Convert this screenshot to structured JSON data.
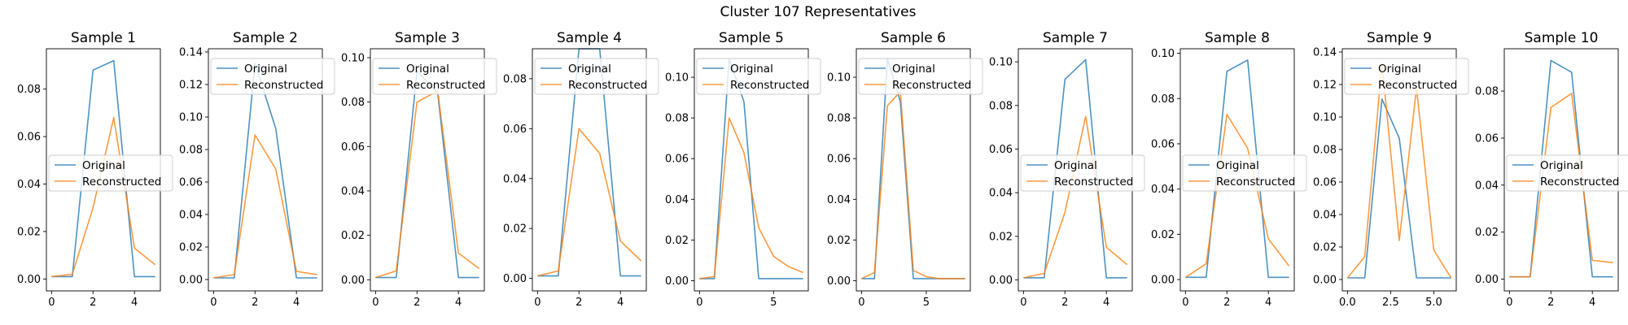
{
  "figure": {
    "title": "Cluster 107 Representatives"
  },
  "colors": {
    "original": "#1f77b4",
    "reconstructed": "#ff7f0e"
  },
  "legend_labels": [
    "Original",
    "Reconstructed"
  ],
  "chart_data": [
    {
      "type": "line",
      "title": "Sample 1",
      "xlim": [
        -0.25,
        5.25
      ],
      "ylim": [
        -0.005,
        0.097
      ],
      "xticks": [
        0,
        2,
        4
      ],
      "xtick_labels": [
        "0",
        "2",
        "4"
      ],
      "yticks": [
        0,
        0.02,
        0.04,
        0.06,
        0.08
      ],
      "ytick_labels": [
        "0.00",
        "0.02",
        "0.04",
        "0.06",
        "0.08"
      ],
      "legend_position": "center-left",
      "series": [
        {
          "name": "Original",
          "x": [
            0,
            1,
            2,
            3,
            4,
            5
          ],
          "y": [
            0.001,
            0.001,
            0.088,
            0.092,
            0.001,
            0.001
          ]
        },
        {
          "name": "Reconstructed",
          "x": [
            0,
            1,
            2,
            3,
            4,
            5
          ],
          "y": [
            0.001,
            0.002,
            0.03,
            0.068,
            0.013,
            0.006
          ]
        }
      ]
    },
    {
      "type": "line",
      "title": "Sample 2",
      "xlim": [
        -0.25,
        5.25
      ],
      "ylim": [
        -0.007,
        0.142
      ],
      "xticks": [
        0,
        2,
        4
      ],
      "xtick_labels": [
        "0",
        "2",
        "4"
      ],
      "yticks": [
        0,
        0.02,
        0.04,
        0.06,
        0.08,
        0.1,
        0.12,
        0.14
      ],
      "ytick_labels": [
        "0.00",
        "0.02",
        "0.04",
        "0.06",
        "0.08",
        "0.10",
        "0.12",
        "0.14"
      ],
      "legend_position": "upper-left",
      "series": [
        {
          "name": "Original",
          "x": [
            0,
            1,
            2,
            3,
            4,
            5
          ],
          "y": [
            0.001,
            0.001,
            0.133,
            0.093,
            0.001,
            0.001
          ]
        },
        {
          "name": "Reconstructed",
          "x": [
            0,
            1,
            2,
            3,
            4,
            5
          ],
          "y": [
            0.001,
            0.003,
            0.089,
            0.068,
            0.005,
            0.003
          ]
        }
      ]
    },
    {
      "type": "line",
      "title": "Sample 3",
      "xlim": [
        -0.25,
        5.25
      ],
      "ylim": [
        -0.005,
        0.104
      ],
      "xticks": [
        0,
        2,
        4
      ],
      "xtick_labels": [
        "0",
        "2",
        "4"
      ],
      "yticks": [
        0,
        0.02,
        0.04,
        0.06,
        0.08,
        0.1
      ],
      "ytick_labels": [
        "0.00",
        "0.02",
        "0.04",
        "0.06",
        "0.08",
        "0.10"
      ],
      "legend_position": "upper-left",
      "series": [
        {
          "name": "Original",
          "x": [
            0,
            1,
            2,
            3,
            4,
            5
          ],
          "y": [
            0.001,
            0.001,
            0.094,
            0.084,
            0.001,
            0.001
          ]
        },
        {
          "name": "Reconstructed",
          "x": [
            0,
            1,
            2,
            3,
            4,
            5
          ],
          "y": [
            0.001,
            0.004,
            0.08,
            0.085,
            0.012,
            0.005
          ]
        }
      ]
    },
    {
      "type": "line",
      "title": "Sample 4",
      "xlim": [
        -0.25,
        5.25
      ],
      "ylim": [
        -0.005,
        0.092
      ],
      "xticks": [
        0,
        2,
        4
      ],
      "xtick_labels": [
        "0",
        "2",
        "4"
      ],
      "yticks": [
        0,
        0.02,
        0.04,
        0.06,
        0.08
      ],
      "ytick_labels": [
        "0.00",
        "0.02",
        "0.04",
        "0.06",
        "0.08"
      ],
      "legend_position": "upper-left",
      "series": [
        {
          "name": "Original",
          "x": [
            0,
            1,
            2,
            3,
            4,
            5
          ],
          "y": [
            0.001,
            0.001,
            0.092,
            0.092,
            0.001,
            0.001
          ]
        },
        {
          "name": "Reconstructed",
          "x": [
            0,
            1,
            2,
            3,
            4,
            5
          ],
          "y": [
            0.001,
            0.003,
            0.06,
            0.05,
            0.015,
            0.007
          ]
        }
      ]
    },
    {
      "type": "line",
      "title": "Sample 5",
      "xlim": [
        -0.35,
        7.35
      ],
      "ylim": [
        -0.005,
        0.114
      ],
      "xticks": [
        0,
        5
      ],
      "xtick_labels": [
        "0",
        "5"
      ],
      "yticks": [
        0,
        0.02,
        0.04,
        0.06,
        0.08,
        0.1
      ],
      "ytick_labels": [
        "0.00",
        "0.02",
        "0.04",
        "0.06",
        "0.08",
        "0.10"
      ],
      "legend_position": "upper-left",
      "series": [
        {
          "name": "Original",
          "x": [
            0,
            1,
            2,
            3,
            4,
            5,
            6,
            7
          ],
          "y": [
            0.001,
            0.001,
            0.109,
            0.088,
            0.001,
            0.001,
            0.001,
            0.001
          ]
        },
        {
          "name": "Reconstructed",
          "x": [
            0,
            1,
            2,
            3,
            4,
            5,
            6,
            7
          ],
          "y": [
            0.001,
            0.002,
            0.08,
            0.063,
            0.026,
            0.012,
            0.007,
            0.004
          ]
        }
      ]
    },
    {
      "type": "line",
      "title": "Sample 6",
      "xlim": [
        -0.4,
        8.4
      ],
      "ylim": [
        -0.005,
        0.114
      ],
      "xticks": [
        0,
        5
      ],
      "xtick_labels": [
        "0",
        "5"
      ],
      "yticks": [
        0,
        0.02,
        0.04,
        0.06,
        0.08,
        0.1
      ],
      "ytick_labels": [
        "0.00",
        "0.02",
        "0.04",
        "0.06",
        "0.08",
        "0.10"
      ],
      "legend_position": "upper-left",
      "series": [
        {
          "name": "Original",
          "x": [
            0,
            1,
            2,
            3,
            4,
            5,
            6,
            7,
            8
          ],
          "y": [
            0.001,
            0.001,
            0.109,
            0.088,
            0.001,
            0.001,
            0.001,
            0.001,
            0.001
          ]
        },
        {
          "name": "Reconstructed",
          "x": [
            0,
            1,
            2,
            3,
            4,
            5,
            6,
            7,
            8
          ],
          "y": [
            0.001,
            0.004,
            0.086,
            0.093,
            0.005,
            0.002,
            0.001,
            0.001,
            0.001
          ]
        }
      ]
    },
    {
      "type": "line",
      "title": "Sample 7",
      "xlim": [
        -0.25,
        5.25
      ],
      "ylim": [
        -0.005,
        0.106
      ],
      "xticks": [
        0,
        2,
        4
      ],
      "xtick_labels": [
        "0",
        "2",
        "4"
      ],
      "yticks": [
        0,
        0.02,
        0.04,
        0.06,
        0.08,
        0.1
      ],
      "ytick_labels": [
        "0.00",
        "0.02",
        "0.04",
        "0.06",
        "0.08",
        "0.10"
      ],
      "legend_position": "center-left",
      "series": [
        {
          "name": "Original",
          "x": [
            0,
            1,
            2,
            3,
            4,
            5
          ],
          "y": [
            0.001,
            0.001,
            0.092,
            0.101,
            0.001,
            0.001
          ]
        },
        {
          "name": "Reconstructed",
          "x": [
            0,
            1,
            2,
            3,
            4,
            5
          ],
          "y": [
            0.001,
            0.003,
            0.031,
            0.075,
            0.015,
            0.007
          ]
        }
      ]
    },
    {
      "type": "line",
      "title": "Sample 8",
      "xlim": [
        -0.25,
        5.25
      ],
      "ylim": [
        -0.005,
        0.102
      ],
      "xticks": [
        0,
        2,
        4
      ],
      "xtick_labels": [
        "0",
        "2",
        "4"
      ],
      "yticks": [
        0,
        0.02,
        0.04,
        0.06,
        0.08,
        0.1
      ],
      "ytick_labels": [
        "0.00",
        "0.02",
        "0.04",
        "0.06",
        "0.08",
        "0.10"
      ],
      "legend_position": "center-left",
      "series": [
        {
          "name": "Original",
          "x": [
            0,
            1,
            2,
            3,
            4,
            5
          ],
          "y": [
            0.001,
            0.001,
            0.092,
            0.097,
            0.001,
            0.001
          ]
        },
        {
          "name": "Reconstructed",
          "x": [
            0,
            1,
            2,
            3,
            4,
            5
          ],
          "y": [
            0.001,
            0.007,
            0.073,
            0.058,
            0.018,
            0.006
          ]
        }
      ]
    },
    {
      "type": "line",
      "title": "Sample 9",
      "xlim": [
        -0.3,
        6.3
      ],
      "ylim": [
        -0.007,
        0.142
      ],
      "xticks": [
        0,
        2.5,
        5
      ],
      "xtick_labels": [
        "0.0",
        "2.5",
        "5.0"
      ],
      "yticks": [
        0,
        0.02,
        0.04,
        0.06,
        0.08,
        0.1,
        0.12,
        0.14
      ],
      "ytick_labels": [
        "0.00",
        "0.02",
        "0.04",
        "0.06",
        "0.08",
        "0.10",
        "0.12",
        "0.14"
      ],
      "legend_position": "upper-left",
      "series": [
        {
          "name": "Original",
          "x": [
            0,
            1,
            2,
            3,
            4,
            5,
            6
          ],
          "y": [
            0.001,
            0.001,
            0.111,
            0.087,
            0.001,
            0.001,
            0.001
          ]
        },
        {
          "name": "Reconstructed",
          "x": [
            0,
            1,
            2,
            3,
            4,
            5,
            6
          ],
          "y": [
            0.001,
            0.014,
            0.133,
            0.024,
            0.118,
            0.018,
            0.001
          ]
        }
      ]
    },
    {
      "type": "line",
      "title": "Sample 10",
      "xlim": [
        -0.25,
        5.25
      ],
      "ylim": [
        -0.005,
        0.098
      ],
      "xticks": [
        0,
        2,
        4
      ],
      "xtick_labels": [
        "0",
        "2",
        "4"
      ],
      "yticks": [
        0,
        0.02,
        0.04,
        0.06,
        0.08
      ],
      "ytick_labels": [
        "0.00",
        "0.02",
        "0.04",
        "0.06",
        "0.08"
      ],
      "legend_position": "center-left",
      "series": [
        {
          "name": "Original",
          "x": [
            0,
            1,
            2,
            3,
            4,
            5
          ],
          "y": [
            0.001,
            0.001,
            0.093,
            0.088,
            0.001,
            0.001
          ]
        },
        {
          "name": "Reconstructed",
          "x": [
            0,
            1,
            2,
            3,
            4,
            5
          ],
          "y": [
            0.001,
            0.001,
            0.073,
            0.079,
            0.008,
            0.007
          ]
        }
      ]
    }
  ]
}
